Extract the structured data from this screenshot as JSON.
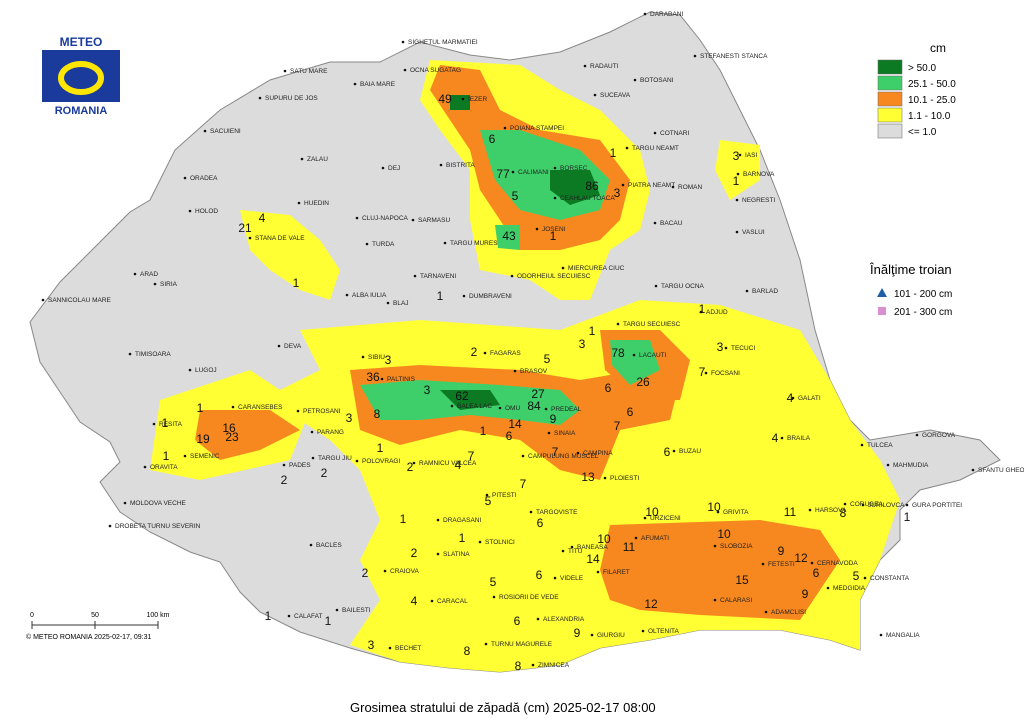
{
  "logo": {
    "line1": "METEO",
    "line2": "ROMANIA"
  },
  "legend": {
    "title": "cm",
    "items": [
      {
        "label": "> 50.0",
        "color": "#0b7a22"
      },
      {
        "label": "25.1 - 50.0",
        "color": "#3fcf6a"
      },
      {
        "label": "10.1 - 25.0",
        "color": "#f7881f"
      },
      {
        "label": "1.1 - 10.0",
        "color": "#ffff33"
      },
      {
        "label": "<= 1.0",
        "color": "#dcdcdc"
      }
    ]
  },
  "drift_legend": {
    "title": "Înălţime troian",
    "items": [
      {
        "label": "101 - 200 cm",
        "color": "#1f5fa8"
      },
      {
        "label": "201 - 300 cm",
        "color": "#d98fd0"
      }
    ]
  },
  "scale": {
    "ticks": [
      "0",
      "50",
      "100 km"
    ]
  },
  "copyright": "© METEO ROMANIA 2025-02-17, 09:31",
  "caption": "Grosimea stratului de zăpadă (cm)  2025-02-17 08:00",
  "cities": [
    "DARABANI",
    "RADAUTI",
    "BOTOSANI",
    "STEFANESTI STANCA",
    "SIGHETUL MARMATIEI",
    "OCNA SUGATAG",
    "SATU MARE",
    "BAIA MARE",
    "SUCEAVA",
    "IEZER",
    "POIANA STAMPEI",
    "COTNARI",
    "IASI",
    "TARGU NEAMT",
    "CALIMANI",
    "CEAHLAU TOACA",
    "PIATRA NEAMT",
    "ROMAN",
    "BARNOVA",
    "NEGRESTI",
    "SUPURU DE JOS",
    "ZALAU",
    "SACUIENI",
    "ORADEA",
    "DEJ",
    "BISTRITA",
    "BORSEC",
    "VASLUI",
    "HOLOD",
    "HUEDIN",
    "CLUJ-NAPOCA",
    "SARMASU",
    "JOSENI",
    "BACAU",
    "STANA DE VALE",
    "TURDA",
    "TARGU MURES",
    "MIERCUREA CIUC",
    "ARAD",
    "SIRIA",
    "TARNAVENI",
    "ODORHEIUL SECUIESC",
    "TARGU OCNA",
    "BARLAD",
    "ALBA IULIA",
    "BLAJ",
    "DUMBRAVENI",
    "SANNICOLAU MARE",
    "TIMISOARA",
    "DEVA",
    "SIBIU",
    "FAGARAS",
    "BRASOV",
    "TARGU SECUIESC",
    "TECUCI",
    "FOCSANI",
    "ADJUD",
    "LUGOJ",
    "PALTINIS",
    "BALEA LAC",
    "LACAUTI",
    "GALATI",
    "CARANSEBES",
    "PETROSANI",
    "OMU",
    "PREDEAL",
    "BRAILA",
    "TULCEA",
    "GORGOVA",
    "RESITA",
    "PARANG",
    "SINAIA",
    "BUZAU",
    "MAHMUDIA",
    "SFANTU GHEORGHE",
    "ORAVITA",
    "SEMENIC",
    "RAMNICU VALCEA",
    "CAMPULUNG MUSCEL",
    "CAMPINA",
    "PADES",
    "POLOVRAGI",
    "PLOIESTI",
    "JURILOVCA",
    "MOLDOVA VECHE",
    "TARGU JIU",
    "PITESTI",
    "TARGOVISTE",
    "URZICENI",
    "GRIVITA",
    "HARSOVA",
    "CORUGEA",
    "GURA PORTITEI",
    "DROBETA TURNU SEVERIN",
    "DRAGASANI",
    "BACLES",
    "TITU",
    "SLOBOZIA",
    "STOLNICI",
    "AFUMATI",
    "BANEASA",
    "FETESTI",
    "CERNAVODA",
    "SLATINA",
    "CRAIOVA",
    "FILARET",
    "CONSTANTA",
    "MEDGIDIA",
    "CALARASI",
    "CARACAL",
    "ROSIORII DE VEDE",
    "VIDELE",
    "OLTENITA",
    "ADAMCLISI",
    "BAILESTI",
    "CALAFAT",
    "ALEXANDRIA",
    "GIURGIU",
    "MANGALIA",
    "BECHET",
    "TURNU MAGURELE",
    "ZIMNICEA"
  ],
  "readings": [
    49,
    6,
    1,
    77,
    86,
    3,
    5,
    43,
    1,
    3,
    1,
    21,
    4,
    1,
    1,
    1,
    1,
    3,
    78,
    3,
    2,
    5,
    3,
    7,
    36,
    26,
    6,
    3,
    62,
    27,
    6,
    84,
    4,
    8,
    9,
    7,
    1,
    1,
    3,
    16,
    23,
    19,
    14,
    1,
    6,
    4,
    1,
    7,
    7,
    6,
    2,
    4,
    2,
    1,
    2,
    13,
    7,
    5,
    11,
    10,
    10,
    8,
    1,
    1,
    6,
    1,
    10,
    11,
    10,
    2,
    9,
    12,
    14,
    2,
    6,
    5,
    6,
    5,
    15,
    4,
    9,
    12,
    6,
    1,
    1,
    9,
    3,
    8,
    8
  ]
}
